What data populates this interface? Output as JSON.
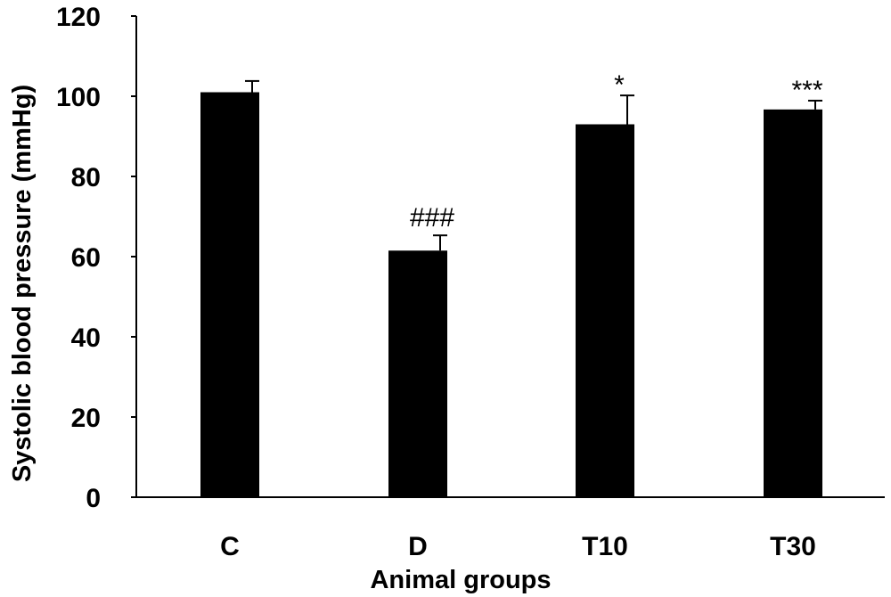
{
  "chart_data": {
    "type": "bar",
    "xlabel": "Animal groups",
    "ylabel": "Systolic blood pressure (mmHg)",
    "ylim": [
      0,
      120
    ],
    "yticks": [
      "0",
      "20",
      "40",
      "60",
      "80",
      "100",
      "120"
    ],
    "categories": [
      "C",
      "D",
      "T10",
      "T30"
    ],
    "values": [
      101,
      61.5,
      93,
      96.7
    ],
    "errors": [
      2.8,
      3.8,
      7.2,
      2.2
    ],
    "annotations": [
      "",
      "###",
      "*",
      "***"
    ],
    "bar_color": "#000000",
    "grid": false,
    "legend": "none"
  }
}
